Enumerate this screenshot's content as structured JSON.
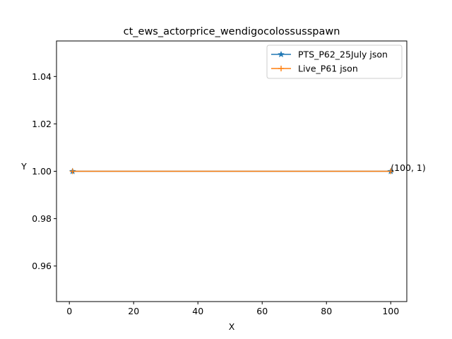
{
  "chart_data": {
    "type": "line",
    "title": "ct_ews_actorprice_wendigocolossusspawn",
    "xlabel": "X",
    "ylabel": "Y",
    "xlim": [
      -4,
      105
    ],
    "ylim": [
      0.945,
      1.055
    ],
    "xticks": [
      0,
      20,
      40,
      60,
      80,
      100
    ],
    "yticks": [
      0.96,
      0.98,
      1.0,
      1.02,
      1.04
    ],
    "ytick_labels": [
      "0.96",
      "0.98",
      "1.00",
      "1.02",
      "1.04"
    ],
    "grid": false,
    "legend_position": "top-right",
    "series": [
      {
        "name": "PTS_P62_25July json",
        "x": [
          1,
          100
        ],
        "y": [
          1,
          1
        ],
        "color": "#1f77b4",
        "marker": "star"
      },
      {
        "name": "Live_P61 json",
        "x": [
          1,
          100
        ],
        "y": [
          1,
          1
        ],
        "color": "#ff7f0e",
        "marker": "plus"
      }
    ],
    "annotations": [
      {
        "text": "(100, 1)",
        "x": 100,
        "y": 1
      }
    ]
  }
}
